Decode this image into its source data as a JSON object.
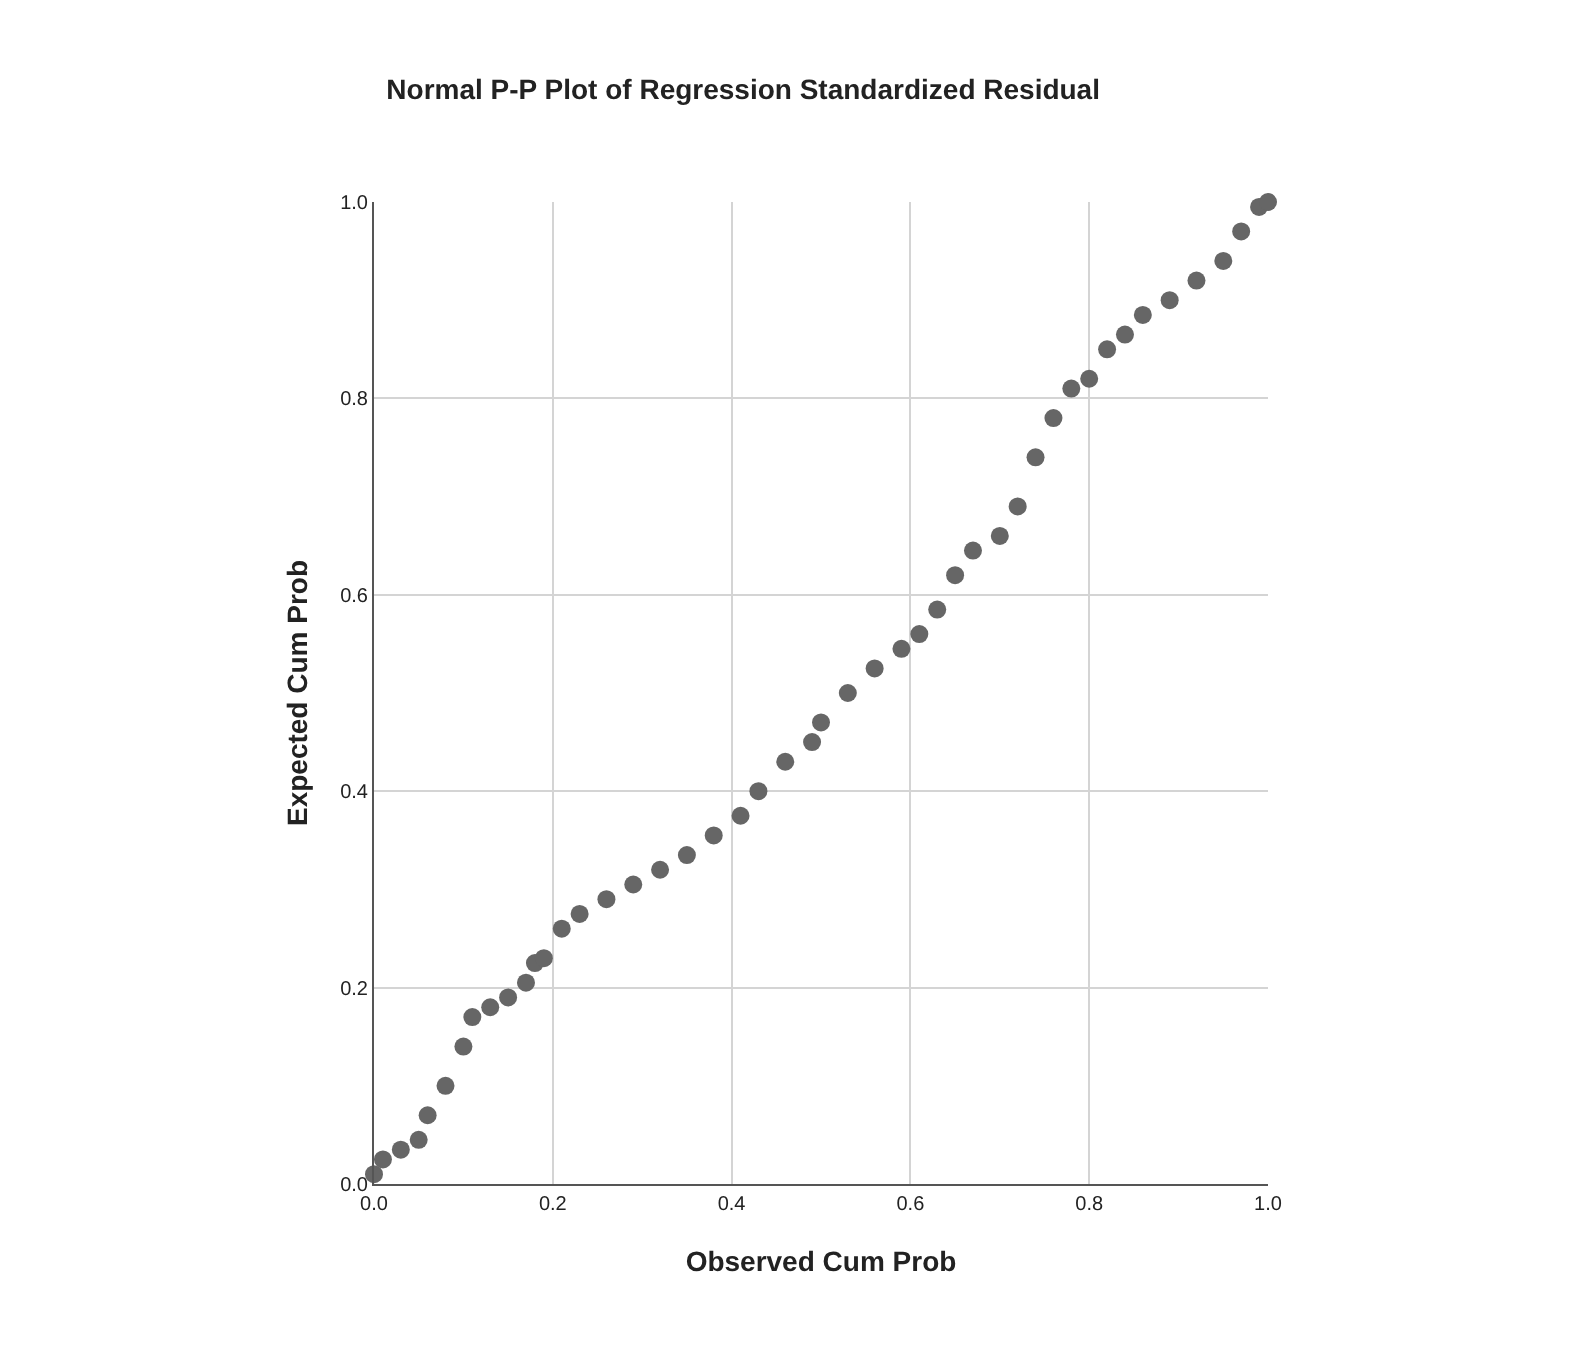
{
  "chart_data": {
    "type": "scatter",
    "title": "Normal P-P Plot of Regression Standardized Residual",
    "xlabel": "Observed Cum Prob",
    "ylabel": "Expected Cum Prob",
    "x": [
      0,
      0.01,
      0.03,
      0.05,
      0.06,
      0.08,
      0.1,
      0.11,
      0.13,
      0.15,
      0.17,
      0.18,
      0.19,
      0.21,
      0.23,
      0.26,
      0.29,
      0.32,
      0.35,
      0.38,
      0.41,
      0.43,
      0.46,
      0.49,
      0.5,
      0.53,
      0.56,
      0.59,
      0.61,
      0.63,
      0.65,
      0.67,
      0.7,
      0.72,
      0.74,
      0.76,
      0.78,
      0.8,
      0.82,
      0.84,
      0.86,
      0.89,
      0.92,
      0.95,
      0.97,
      0.99,
      1.0
    ],
    "series": [
      {
        "color": "#666666",
        "values": [
          0.01,
          0.025,
          0.035,
          0.045,
          0.07,
          0.1,
          0.14,
          0.17,
          0.18,
          0.19,
          0.205,
          0.225,
          0.23,
          0.26,
          0.275,
          0.29,
          0.305,
          0.32,
          0.335,
          0.355,
          0.375,
          0.4,
          0.43,
          0.45,
          0.47,
          0.5,
          0.525,
          0.545,
          0.56,
          0.585,
          0.62,
          0.645,
          0.66,
          0.69,
          0.74,
          0.78,
          0.81,
          0.82,
          0.85,
          0.865,
          0.885,
          0.9,
          0.92,
          0.94,
          0.97,
          0.995,
          1.0
        ]
      }
    ],
    "xlim": [
      0,
      1
    ],
    "ylim": [
      0,
      1
    ],
    "xticks": [
      {
        "value": 0,
        "label": "0.0"
      },
      0.2,
      0.4,
      0.6,
      0.8,
      {
        "value": 1,
        "label": "1.0"
      }
    ],
    "yticks": [
      {
        "value": 0,
        "label": "0.0"
      },
      0.2,
      0.4,
      0.6,
      0.8,
      {
        "value": 1,
        "label": "1.0"
      }
    ],
    "grid": true,
    "marker": "circle"
  }
}
